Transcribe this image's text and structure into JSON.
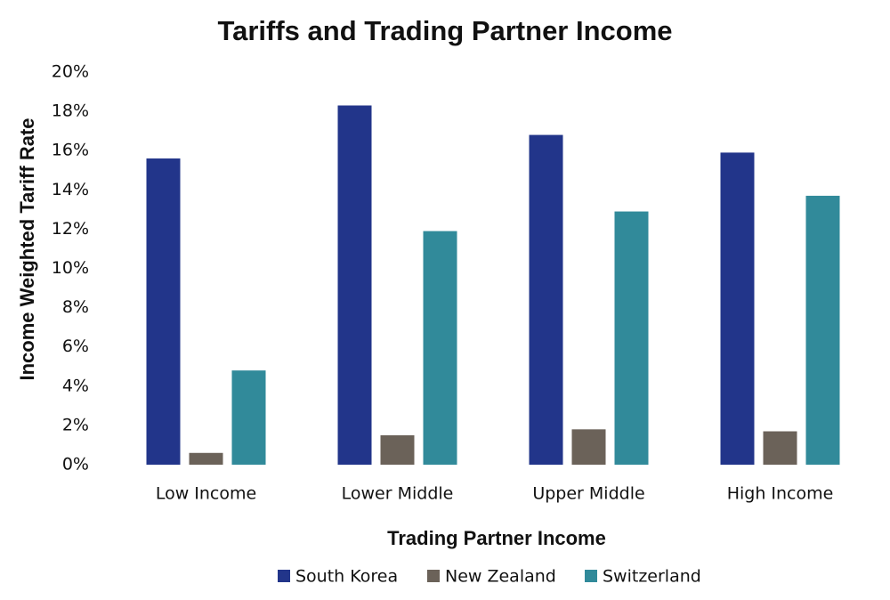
{
  "chart_data": {
    "type": "bar",
    "title": "Tariffs and Trading Partner Income",
    "x_label": "Trading Partner Income",
    "y_label": "Income Weighted Tariff Rate",
    "categories": [
      "Low Income",
      "Lower Middle",
      "Upper Middle",
      "High Income"
    ],
    "series": [
      {
        "name": "South Korea",
        "color": "#22358a",
        "values": [
          15.6,
          18.3,
          16.8,
          15.9
        ]
      },
      {
        "name": "New Zealand",
        "color": "#6b6259",
        "values": [
          0.6,
          1.5,
          1.8,
          1.7
        ]
      },
      {
        "name": "Switzerland",
        "color": "#318a9a",
        "values": [
          4.8,
          11.9,
          12.9,
          13.7
        ]
      }
    ],
    "ylim": [
      0,
      20
    ],
    "yticks": [
      {
        "value": 0,
        "label": "0%"
      },
      {
        "value": 2,
        "label": "2%"
      },
      {
        "value": 4,
        "label": "4%"
      },
      {
        "value": 6,
        "label": "6%"
      },
      {
        "value": 8,
        "label": "8%"
      },
      {
        "value": 10,
        "label": "10%"
      },
      {
        "value": 12,
        "label": "12%"
      },
      {
        "value": 14,
        "label": "14%"
      },
      {
        "value": 16,
        "label": "16%"
      },
      {
        "value": 18,
        "label": "18%"
      },
      {
        "value": 20,
        "label": "20%"
      }
    ],
    "grid": false,
    "legend": "bottom"
  }
}
